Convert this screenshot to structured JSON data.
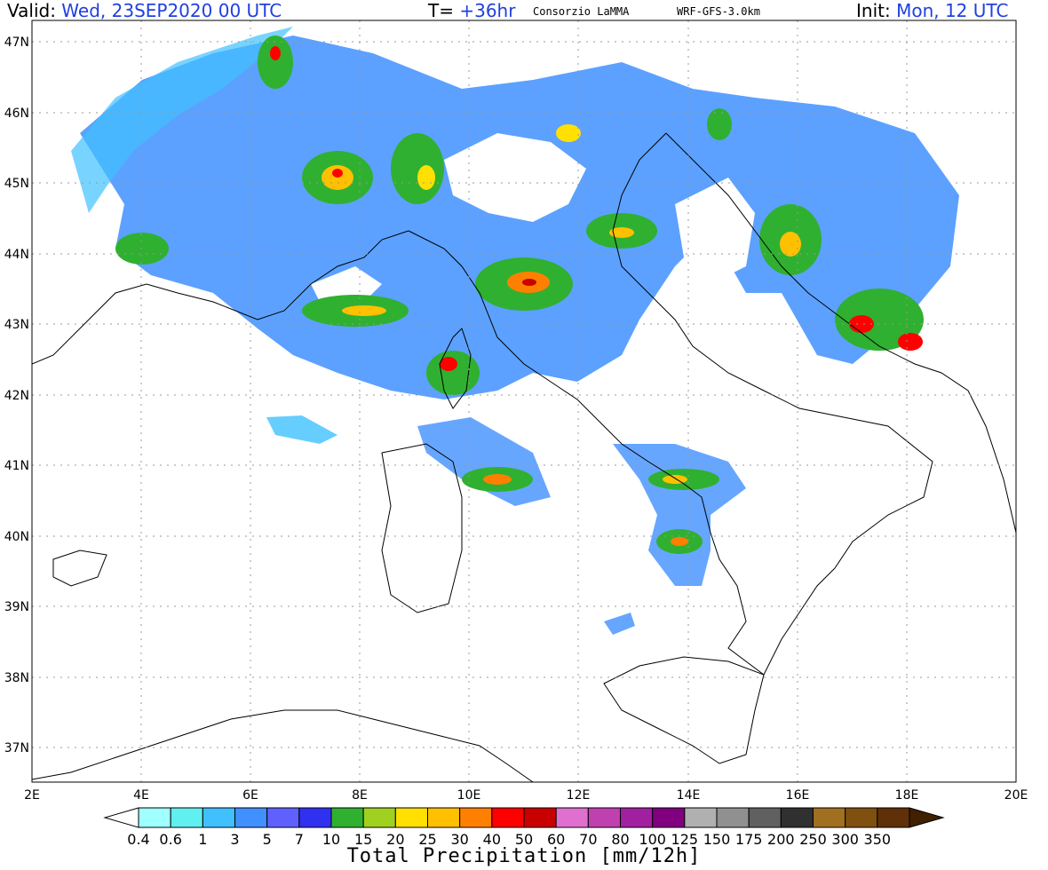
{
  "header": {
    "valid_label": "Valid:",
    "valid_value": "Wed, 23SEP2020   00 UTC",
    "t_label": "T=",
    "t_value": "+36hr",
    "org": "Consorzio LaMMA",
    "model": "WRF-GFS-3.0km",
    "init_label": "Init:",
    "init_value": "Mon, 12 UTC"
  },
  "lat_labels": [
    "47N",
    "46N",
    "45N",
    "44N",
    "43N",
    "42N",
    "41N",
    "40N",
    "39N",
    "38N",
    "37N"
  ],
  "lon_labels": [
    "2E",
    "4E",
    "6E",
    "8E",
    "10E",
    "12E",
    "14E",
    "16E",
    "18E",
    "20E"
  ],
  "colorbar": {
    "title": "Total Precipitation [mm/12h]",
    "labels": [
      "0.4",
      "0.6",
      "1",
      "3",
      "5",
      "7",
      "10",
      "15",
      "20",
      "25",
      "30",
      "40",
      "50",
      "60",
      "70",
      "80",
      "100",
      "125",
      "150",
      "175",
      "200",
      "250",
      "300",
      "350"
    ],
    "colors": [
      "#ffffff",
      "#a0ffff",
      "#60f0f0",
      "#40c0ff",
      "#4090ff",
      "#6060ff",
      "#3030f0",
      "#30b030",
      "#a0d020",
      "#ffe000",
      "#ffc000",
      "#ff8000",
      "#ff0000",
      "#c80000",
      "#e070d0",
      "#c040b0",
      "#a020a0",
      "#800080",
      "#b0b0b0",
      "#909090",
      "#606060",
      "#303030",
      "#a07020",
      "#805010",
      "#603008",
      "#402000"
    ]
  },
  "map_colors": {
    "land": "#ffffff",
    "coast": "#000000",
    "grid": "#999999"
  }
}
